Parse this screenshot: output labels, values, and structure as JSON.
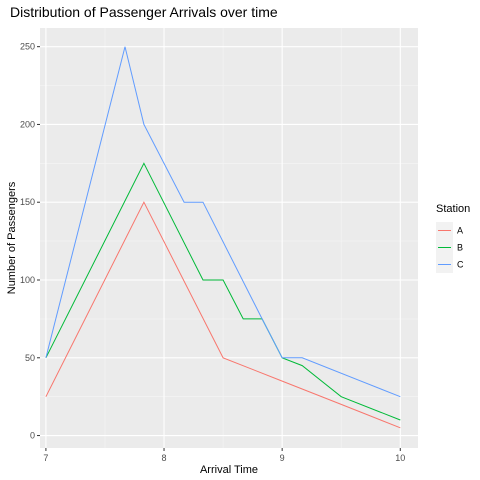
{
  "chart_data": {
    "type": "line",
    "title": "Distribution of Passenger Arrivals over time",
    "xlabel": "Arrival Time",
    "ylabel": "Number of Passengers",
    "xlim": [
      6.95,
      10.15
    ],
    "ylim": [
      -8,
      262
    ],
    "x_ticks": [
      7,
      8,
      9,
      10
    ],
    "y_ticks": [
      0,
      50,
      100,
      150,
      200,
      250
    ],
    "grid": true,
    "legend_position": "right",
    "legend_title": "Station",
    "series": [
      {
        "name": "A",
        "color": "#F8766D",
        "points": [
          [
            7,
            25
          ],
          [
            7.83,
            150
          ],
          [
            8.5,
            50
          ],
          [
            9,
            35
          ],
          [
            9.5,
            20
          ],
          [
            10,
            5
          ]
        ]
      },
      {
        "name": "B",
        "color": "#00BA38",
        "points": [
          [
            7,
            50
          ],
          [
            7.83,
            175
          ],
          [
            8.33,
            100
          ],
          [
            8.5,
            100
          ],
          [
            8.67,
            75
          ],
          [
            8.83,
            75
          ],
          [
            9,
            50
          ],
          [
            9.17,
            45
          ],
          [
            9.5,
            25
          ],
          [
            10,
            10
          ]
        ]
      },
      {
        "name": "C",
        "color": "#619CFF",
        "points": [
          [
            7,
            50
          ],
          [
            7.67,
            250
          ],
          [
            7.83,
            200
          ],
          [
            8.17,
            150
          ],
          [
            8.33,
            150
          ],
          [
            8.83,
            75
          ],
          [
            9,
            50
          ],
          [
            9.17,
            50
          ],
          [
            10,
            25
          ]
        ]
      }
    ]
  }
}
